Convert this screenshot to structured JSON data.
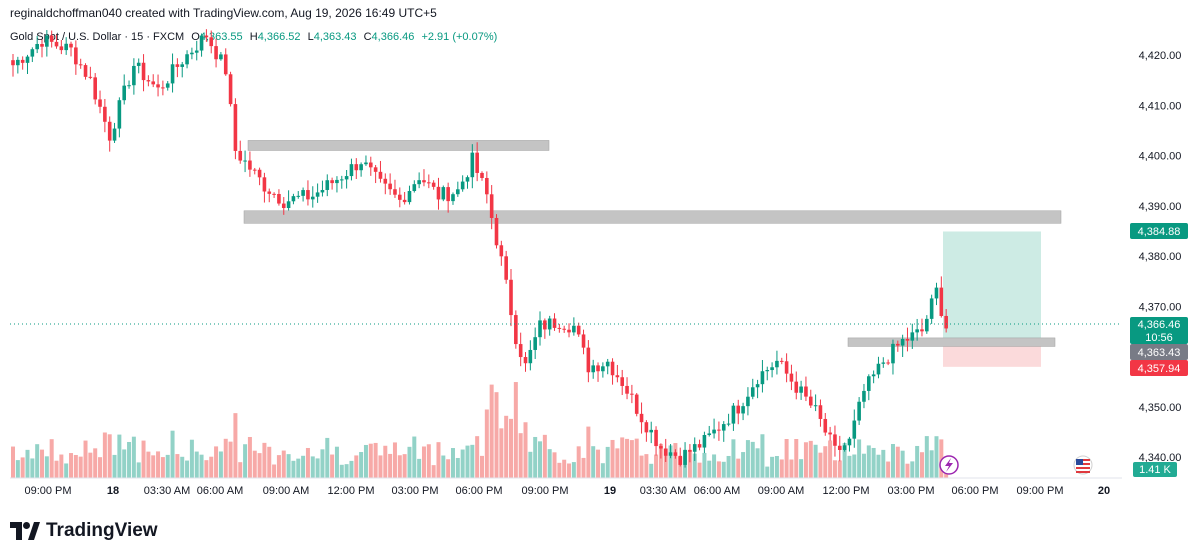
{
  "header": {
    "attribution": "reginaldchoffman040 created with TradingView.com, Aug 19, 2026 16:49 UTC+5"
  },
  "legend": {
    "symbol": "Gold Spot / U.S. Dollar · 15 · FXCM",
    "open_label": "O",
    "open_value": "4,363.55",
    "high_label": "H",
    "high_value": "4,366.52",
    "low_label": "L",
    "low_value": "4,363.43",
    "close_label": "C",
    "close_value": "4,366.46",
    "change": "+2.91 (+0.07%)"
  },
  "price_tags": {
    "take_profit": "4,384.88",
    "last_price": "4,366.46",
    "countdown": "10:56",
    "entry": "4,363.43",
    "stop_loss": "4,357.94",
    "volume": "1.41 K"
  },
  "brand": {
    "name": "TradingView"
  },
  "colors": {
    "up": "#089981",
    "down": "#f23645",
    "up_vol": "#92d2c7",
    "down_vol": "#f7a9a7",
    "zone": "#c4c4c4",
    "tp_fill": "#cdebe4",
    "sl_fill": "#fbdadb"
  },
  "chart_data": {
    "type": "candlestick",
    "ylim": [
      4337,
      4427
    ],
    "y_ticks": [
      4340,
      4350,
      4360,
      4370,
      4380,
      4390,
      4400,
      4410,
      4420
    ],
    "y_tick_labels": [
      "4,340.00",
      "4,350.00",
      "",
      "4,370.00",
      "4,380.00",
      "4,390.00",
      "4,400.00",
      "4,410.00",
      "4,420.00"
    ],
    "x_tick_labels": [
      "09:00 PM",
      "18",
      "03:30 AM",
      "06:00 AM",
      "09:00 AM",
      "12:00 PM",
      "03:00 PM",
      "06:00 PM",
      "09:00 PM",
      "19",
      "03:30 AM",
      "06:00 AM",
      "09:00 AM",
      "12:00 PM",
      "03:00 PM",
      "06:00 PM",
      "09:00 PM",
      "20"
    ],
    "x_tick_day_markers": [
      "18",
      "19",
      "20"
    ],
    "zones": [
      {
        "name": "upper-resistance-zone",
        "low": 4401.0,
        "high": 4403.0
      },
      {
        "name": "support-zone",
        "low": 4386.5,
        "high": 4389.0
      },
      {
        "name": "entry-zone",
        "low": 4362.0,
        "high": 4363.7
      }
    ],
    "position": {
      "entry": 4363.43,
      "take_profit": 4384.88,
      "stop_loss": 4357.94
    },
    "current_price": 4366.46,
    "anchors": [
      [
        0,
        4418
      ],
      [
        6,
        4423
      ],
      [
        12,
        4421
      ],
      [
        16,
        4415
      ],
      [
        20,
        4404
      ],
      [
        25,
        4418
      ],
      [
        30,
        4413
      ],
      [
        35,
        4419
      ],
      [
        40,
        4424
      ],
      [
        44,
        4417
      ],
      [
        46,
        4401
      ],
      [
        52,
        4394
      ],
      [
        56,
        4391
      ],
      [
        62,
        4392
      ],
      [
        68,
        4396
      ],
      [
        72,
        4399
      ],
      [
        76,
        4394
      ],
      [
        80,
        4391
      ],
      [
        84,
        4396
      ],
      [
        88,
        4392
      ],
      [
        92,
        4393
      ],
      [
        95,
        4399
      ],
      [
        98,
        4392
      ],
      [
        101,
        4379
      ],
      [
        104,
        4364
      ],
      [
        106,
        4358
      ],
      [
        109,
        4366
      ],
      [
        113,
        4367
      ],
      [
        116,
        4366
      ],
      [
        119,
        4358
      ],
      [
        123,
        4359
      ],
      [
        126,
        4355
      ],
      [
        130,
        4348
      ],
      [
        134,
        4342
      ],
      [
        138,
        4340
      ],
      [
        143,
        4343
      ],
      [
        146,
        4346
      ],
      [
        150,
        4350
      ],
      [
        154,
        4356
      ],
      [
        158,
        4359
      ],
      [
        162,
        4354
      ],
      [
        166,
        4349
      ],
      [
        170,
        4341
      ],
      [
        173,
        4343
      ],
      [
        176,
        4353
      ],
      [
        180,
        4359
      ],
      [
        184,
        4363
      ],
      [
        188,
        4365
      ],
      [
        191,
        4373
      ],
      [
        193,
        4366
      ]
    ]
  }
}
